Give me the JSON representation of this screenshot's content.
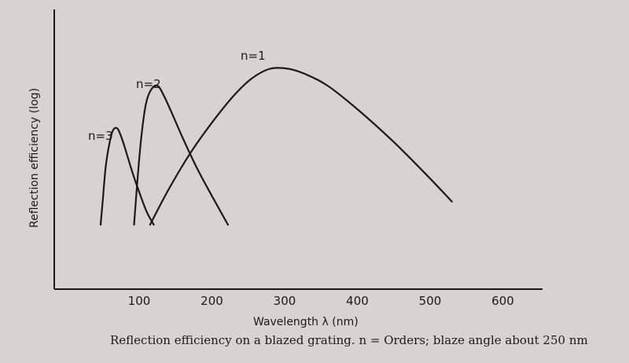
{
  "chart_data": {
    "type": "line",
    "xlabel": "Wavelength λ (nm)",
    "ylabel": "Reflection efficiency (log)",
    "xlim": [
      40,
      650
    ],
    "ylim": [
      0,
      1
    ],
    "x_ticks": [
      "100",
      "200",
      "300",
      "400",
      "500",
      "600"
    ],
    "x_tick_values": [
      100,
      200,
      300,
      400,
      500,
      600
    ],
    "y_scale": "log",
    "grid": false,
    "series": [
      {
        "name": "n=1",
        "x": [
          115,
          140,
          170,
          200,
          230,
          255,
          280,
          305,
          330,
          360,
          400,
          450,
          500,
          530
        ],
        "y": [
          0.0,
          0.18,
          0.37,
          0.53,
          0.67,
          0.76,
          0.81,
          0.81,
          0.78,
          0.72,
          0.6,
          0.43,
          0.24,
          0.12
        ]
      },
      {
        "name": "n=2",
        "x": [
          93,
          98,
          104,
          110,
          118,
          126,
          134,
          145,
          160,
          180,
          200,
          222
        ],
        "y": [
          0.0,
          0.25,
          0.49,
          0.64,
          0.71,
          0.72,
          0.67,
          0.58,
          0.45,
          0.29,
          0.15,
          0.0
        ]
      },
      {
        "name": "n=3",
        "x": [
          47,
          50,
          54,
          59,
          64,
          70,
          76,
          82,
          90,
          100,
          110,
          120
        ],
        "y": [
          0.0,
          0.13,
          0.3,
          0.42,
          0.49,
          0.5,
          0.45,
          0.38,
          0.28,
          0.17,
          0.07,
          0.0
        ]
      }
    ],
    "annotations": [
      "n=1",
      "n=2",
      "n=3"
    ]
  },
  "caption": "Reflection efficiency on a blazed grating. n = Orders; blaze angle about 250 nm"
}
